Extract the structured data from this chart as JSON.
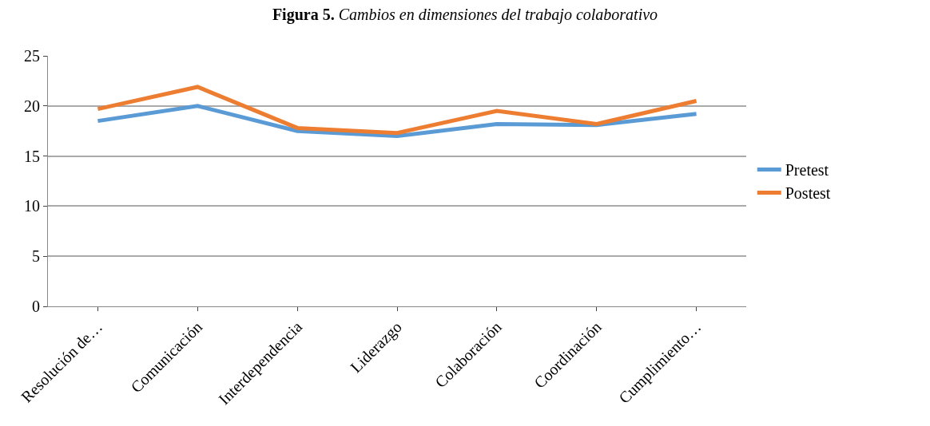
{
  "chart_data": {
    "type": "line",
    "title": "Figura 5. Cambios en dimensiones del trabajo colaborativo",
    "categories": [
      "Resolución de…",
      "Comunicación",
      "Interdependencia",
      "Liderazgo",
      "Colaboración",
      "Coordinación",
      "Cumplimiento…"
    ],
    "series": [
      {
        "name": "Pretest",
        "color": "#5b9bd5",
        "values": [
          18.5,
          20,
          17.5,
          17,
          18.2,
          18.1,
          19.2
        ]
      },
      {
        "name": "Postest",
        "color": "#ed7d31",
        "values": [
          19.7,
          21.9,
          17.8,
          17.3,
          19.5,
          18.2,
          20.5
        ]
      }
    ],
    "ylim": [
      0,
      25
    ],
    "yticks": [
      0,
      5,
      10,
      15,
      20,
      25
    ],
    "grid": "y",
    "legend": "right",
    "marker": "none",
    "line_style": "solid"
  }
}
